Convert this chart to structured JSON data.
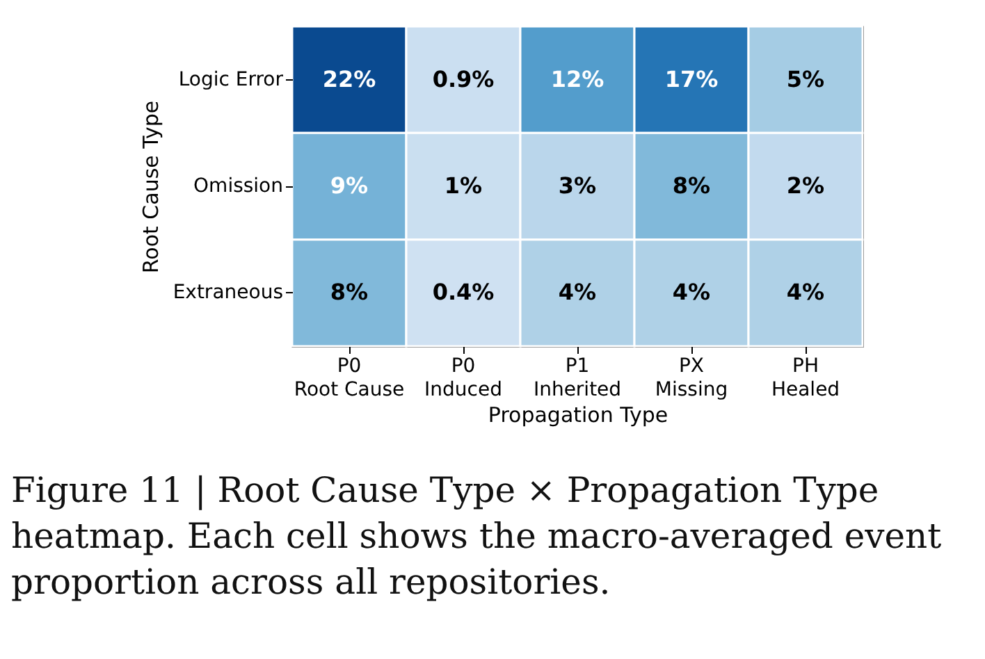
{
  "chart_data": {
    "type": "heatmap",
    "xlabel": "Propagation Type",
    "ylabel": "Root Cause Type",
    "categories": [
      "P0\nRoot Cause",
      "P0\nInduced",
      "P1\nInherited",
      "PX\nMissing",
      "PH\nHealed"
    ],
    "y_categories": [
      "Logic Error",
      "Omission",
      "Extraneous"
    ],
    "cells": [
      [
        22,
        0.9,
        12,
        17,
        5
      ],
      [
        9,
        1,
        3,
        8,
        2
      ],
      [
        8,
        0.4,
        4,
        4,
        4
      ]
    ],
    "cell_labels": [
      [
        "22%",
        "0.9%",
        "12%",
        "17%",
        "5%"
      ],
      [
        "9%",
        "1%",
        "3%",
        "8%",
        "2%"
      ],
      [
        "8%",
        "0.4%",
        "4%",
        "4%",
        "4%"
      ]
    ],
    "annotations": [
      "Figure 11 | Root Cause Type × Propagation Type heatmap. Each cell shows the macro-averaged event proportion across all repositories."
    ]
  }
}
